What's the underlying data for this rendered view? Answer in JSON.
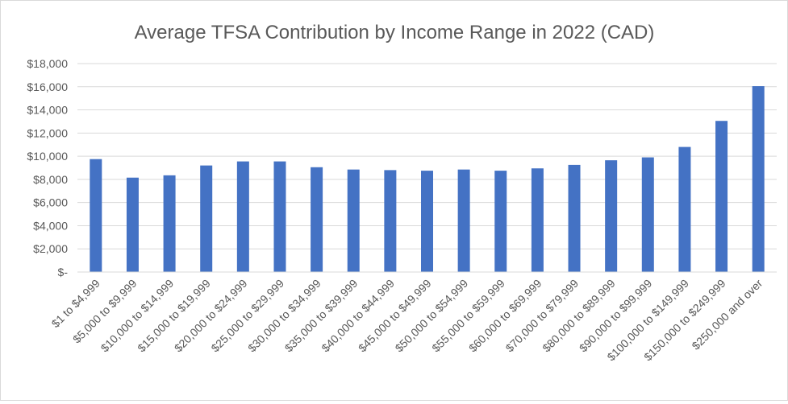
{
  "chart_data": {
    "type": "bar",
    "title": "Average TFSA Contribution by Income Range in 2022 (CAD)",
    "xlabel": "",
    "ylabel": "",
    "ylim": [
      0,
      18000
    ],
    "ytick_step": 2000,
    "ytick_labels": [
      "$-",
      "$2,000",
      "$4,000",
      "$6,000",
      "$8,000",
      "$10,000",
      "$12,000",
      "$14,000",
      "$16,000",
      "$18,000"
    ],
    "grid": true,
    "legend": "none",
    "bar_color": "#4472C4",
    "categories": [
      "$1 to $4,999",
      "$5,000 to $9,999",
      "$10,000 to $14,999",
      "$15,000 to $19,999",
      "$20,000 to $24,999",
      "$25,000 to $29,999",
      "$30,000 to $34,999",
      "$35,000 to $39,999",
      "$40,000 to $44,999",
      "$45,000 to $49,999",
      "$50,000 to $54,999",
      "$55,000 to $59,999",
      "$60,000 to $69,999",
      "$70,000 to $79,999",
      "$80,000 to $89,999",
      "$90,000 to $99,999",
      "$100,000 to $149,999",
      "$150,000 to $249,999",
      "$250,000 and over"
    ],
    "values": [
      9750,
      8150,
      8350,
      9200,
      9550,
      9550,
      9050,
      8850,
      8800,
      8750,
      8850,
      8750,
      8950,
      9250,
      9650,
      9900,
      10800,
      13050,
      16050
    ]
  }
}
